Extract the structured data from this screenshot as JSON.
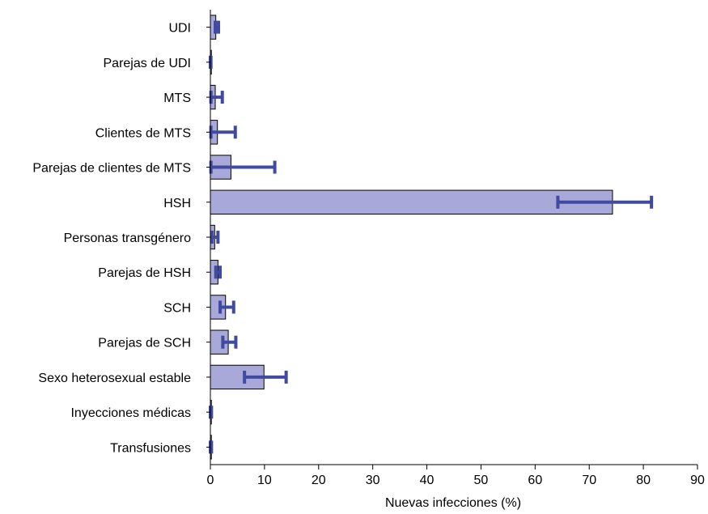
{
  "chart_data": {
    "type": "bar",
    "orientation": "horizontal",
    "xlabel": "Nuevas infecciones (%)",
    "ylabel": "",
    "xlim": [
      0,
      90
    ],
    "xticks": [
      0,
      10,
      20,
      30,
      40,
      50,
      60,
      70,
      80,
      90
    ],
    "grid": false,
    "legend": "none",
    "categories": [
      "UDI",
      "Parejas de UDI",
      "MTS",
      "Clientes de MTS",
      "Parejas de clientes de MTS",
      "HSH",
      "Personas transgénero",
      "Parejas de HSH",
      "SCH",
      "Parejas de SCH",
      "Sexo heterosexual estable",
      "Inyecciones médicas",
      "Transfusiones"
    ],
    "series": [
      {
        "values": [
          1.0,
          0.1,
          0.9,
          1.3,
          3.8,
          74.3,
          0.8,
          1.4,
          2.8,
          3.3,
          9.9,
          0.1,
          0.1
        ],
        "error_low": [
          0.9,
          0.0,
          0.1,
          0.1,
          0.1,
          64.2,
          0.3,
          1.0,
          1.8,
          2.3,
          6.3,
          0.0,
          0.0
        ],
        "error_high": [
          1.5,
          0.1,
          2.2,
          4.6,
          11.9,
          81.5,
          1.4,
          1.8,
          4.3,
          4.7,
          14.0,
          0.2,
          0.2
        ]
      }
    ],
    "colors": {
      "bar_fill": "#a8a9d8",
      "bar_stroke": "#000000",
      "error_bar": "#3f4aa0",
      "axis": "#000000"
    }
  }
}
